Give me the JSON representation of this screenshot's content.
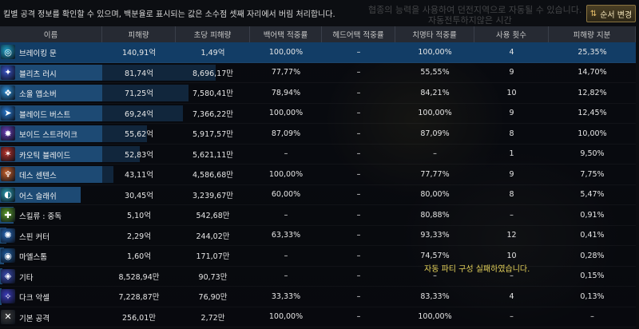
{
  "notice": "킬별 공격 정보를 확인할 수 있으며, 백분율로 표시되는 값은 소수점 셋째 자리에서 버림 처리합니다.",
  "sort_button": {
    "label": "순서 변경",
    "icon": "swap-icon"
  },
  "background_texts": [
    "협종의 능력을 사용하여 던전지역으로 자동될 수 있습니다.",
    "자동전투하지않은 시간"
  ],
  "party_message": "자동 파티 구성 실패하였습니다.",
  "columns": [
    "이름",
    "피해량",
    "초당 피해량",
    "백어택 적중률",
    "헤드어택 적중률",
    "치명타 적중률",
    "사용 횟수",
    "피해량 지분"
  ],
  "rows": [
    {
      "icon": "breaking-moon-icon",
      "color": "#1fa0c8",
      "glyph": "◎",
      "name": "브레이킹 문",
      "damage": "140,91억",
      "dps": "1,49억",
      "back": "100,00%",
      "head": "–",
      "crit": "100,00%",
      "uses": "4",
      "share": "25,35%",
      "share_pct": 25.35
    },
    {
      "icon": "blitz-rush-icon",
      "color": "#3a55c8",
      "glyph": "✦",
      "name": "블리츠 러시",
      "damage": "81,74억",
      "dps": "8,696,17만",
      "back": "77,77%",
      "head": "–",
      "crit": "55,55%",
      "uses": "9",
      "share": "14,70%",
      "share_pct": 14.7
    },
    {
      "icon": "soul-absorber-icon",
      "color": "#2f8fd6",
      "glyph": "❖",
      "name": "소울 앱소버",
      "damage": "71,25억",
      "dps": "7,580,41만",
      "back": "78,94%",
      "head": "–",
      "crit": "84,21%",
      "uses": "10",
      "share": "12,82%",
      "share_pct": 12.82
    },
    {
      "icon": "blade-burst-icon",
      "color": "#2a7ad0",
      "glyph": "➤",
      "name": "블레이드 버스트",
      "damage": "69,24억",
      "dps": "7,366,22만",
      "back": "100,00%",
      "head": "–",
      "crit": "100,00%",
      "uses": "9",
      "share": "12,45%",
      "share_pct": 12.45
    },
    {
      "icon": "void-strike-icon",
      "color": "#6a3fb8",
      "glyph": "✸",
      "name": "보이드 스트라이크",
      "damage": "55,62억",
      "dps": "5,917,57만",
      "back": "87,09%",
      "head": "–",
      "crit": "87,09%",
      "uses": "8",
      "share": "10,00%",
      "share_pct": 10.0
    },
    {
      "icon": "chaos-blade-icon",
      "color": "#b8322a",
      "glyph": "✶",
      "name": "카오틱 블레이드",
      "damage": "52,83억",
      "dps": "5,621,11만",
      "back": "–",
      "head": "–",
      "crit": "–",
      "uses": "1",
      "share": "9,50%",
      "share_pct": 9.5
    },
    {
      "icon": "death-sentence-icon",
      "color": "#c8602a",
      "glyph": "♆",
      "name": "데스 센텐스",
      "damage": "43,11억",
      "dps": "4,586,68만",
      "back": "100,00%",
      "head": "–",
      "crit": "77,77%",
      "uses": "9",
      "share": "7,75%",
      "share_pct": 7.75
    },
    {
      "icon": "earth-slash-icon",
      "color": "#2a9ab0",
      "glyph": "◐",
      "name": "어스 슬래쉬",
      "damage": "30,45억",
      "dps": "3,239,67만",
      "back": "60,00%",
      "head": "–",
      "crit": "80,00%",
      "uses": "8",
      "share": "5,47%",
      "share_pct": 5.47
    },
    {
      "icon": "skill-poison-icon",
      "color": "#5a9a2a",
      "glyph": "✚",
      "name": "스킬류 : 중독",
      "damage": "5,10억",
      "dps": "542,68만",
      "back": "–",
      "head": "–",
      "crit": "80,88%",
      "uses": "–",
      "share": "0,91%",
      "share_pct": 0.91
    },
    {
      "icon": "spin-cutter-icon",
      "color": "#2a6ab8",
      "glyph": "✺",
      "name": "스핀 커터",
      "damage": "2,29억",
      "dps": "244,02만",
      "back": "63,33%",
      "head": "–",
      "crit": "93,33%",
      "uses": "12",
      "share": "0,41%",
      "share_pct": 0.41
    },
    {
      "icon": "maelstrom-icon",
      "color": "#1e5a9a",
      "glyph": "◉",
      "name": "마엘스톰",
      "damage": "1,60억",
      "dps": "171,07만",
      "back": "–",
      "head": "–",
      "crit": "74,57%",
      "uses": "10",
      "share": "0,28%",
      "share_pct": 0.28
    },
    {
      "icon": "etc-icon",
      "color": "#3a4ab0",
      "glyph": "◈",
      "name": "기타",
      "damage": "8,528,94만",
      "dps": "90,73만",
      "back": "–",
      "head": "–",
      "crit": "–",
      "uses": "–",
      "share": "0,15%",
      "share_pct": 0.15
    },
    {
      "icon": "dark-axel-icon",
      "color": "#3a3ab8",
      "glyph": "✧",
      "name": "다크 악셀",
      "damage": "7,228,87만",
      "dps": "76,90만",
      "back": "33,33%",
      "head": "–",
      "crit": "83,33%",
      "uses": "4",
      "share": "0,13%",
      "share_pct": 0.13
    },
    {
      "icon": "basic-attack-icon",
      "color": "#3a3a3a",
      "glyph": "✕",
      "name": "기본 공격",
      "damage": "256,01만",
      "dps": "2,72만",
      "back": "100,00%",
      "head": "–",
      "crit": "100,00%",
      "uses": "–",
      "share": "–",
      "share_pct": 0
    }
  ]
}
